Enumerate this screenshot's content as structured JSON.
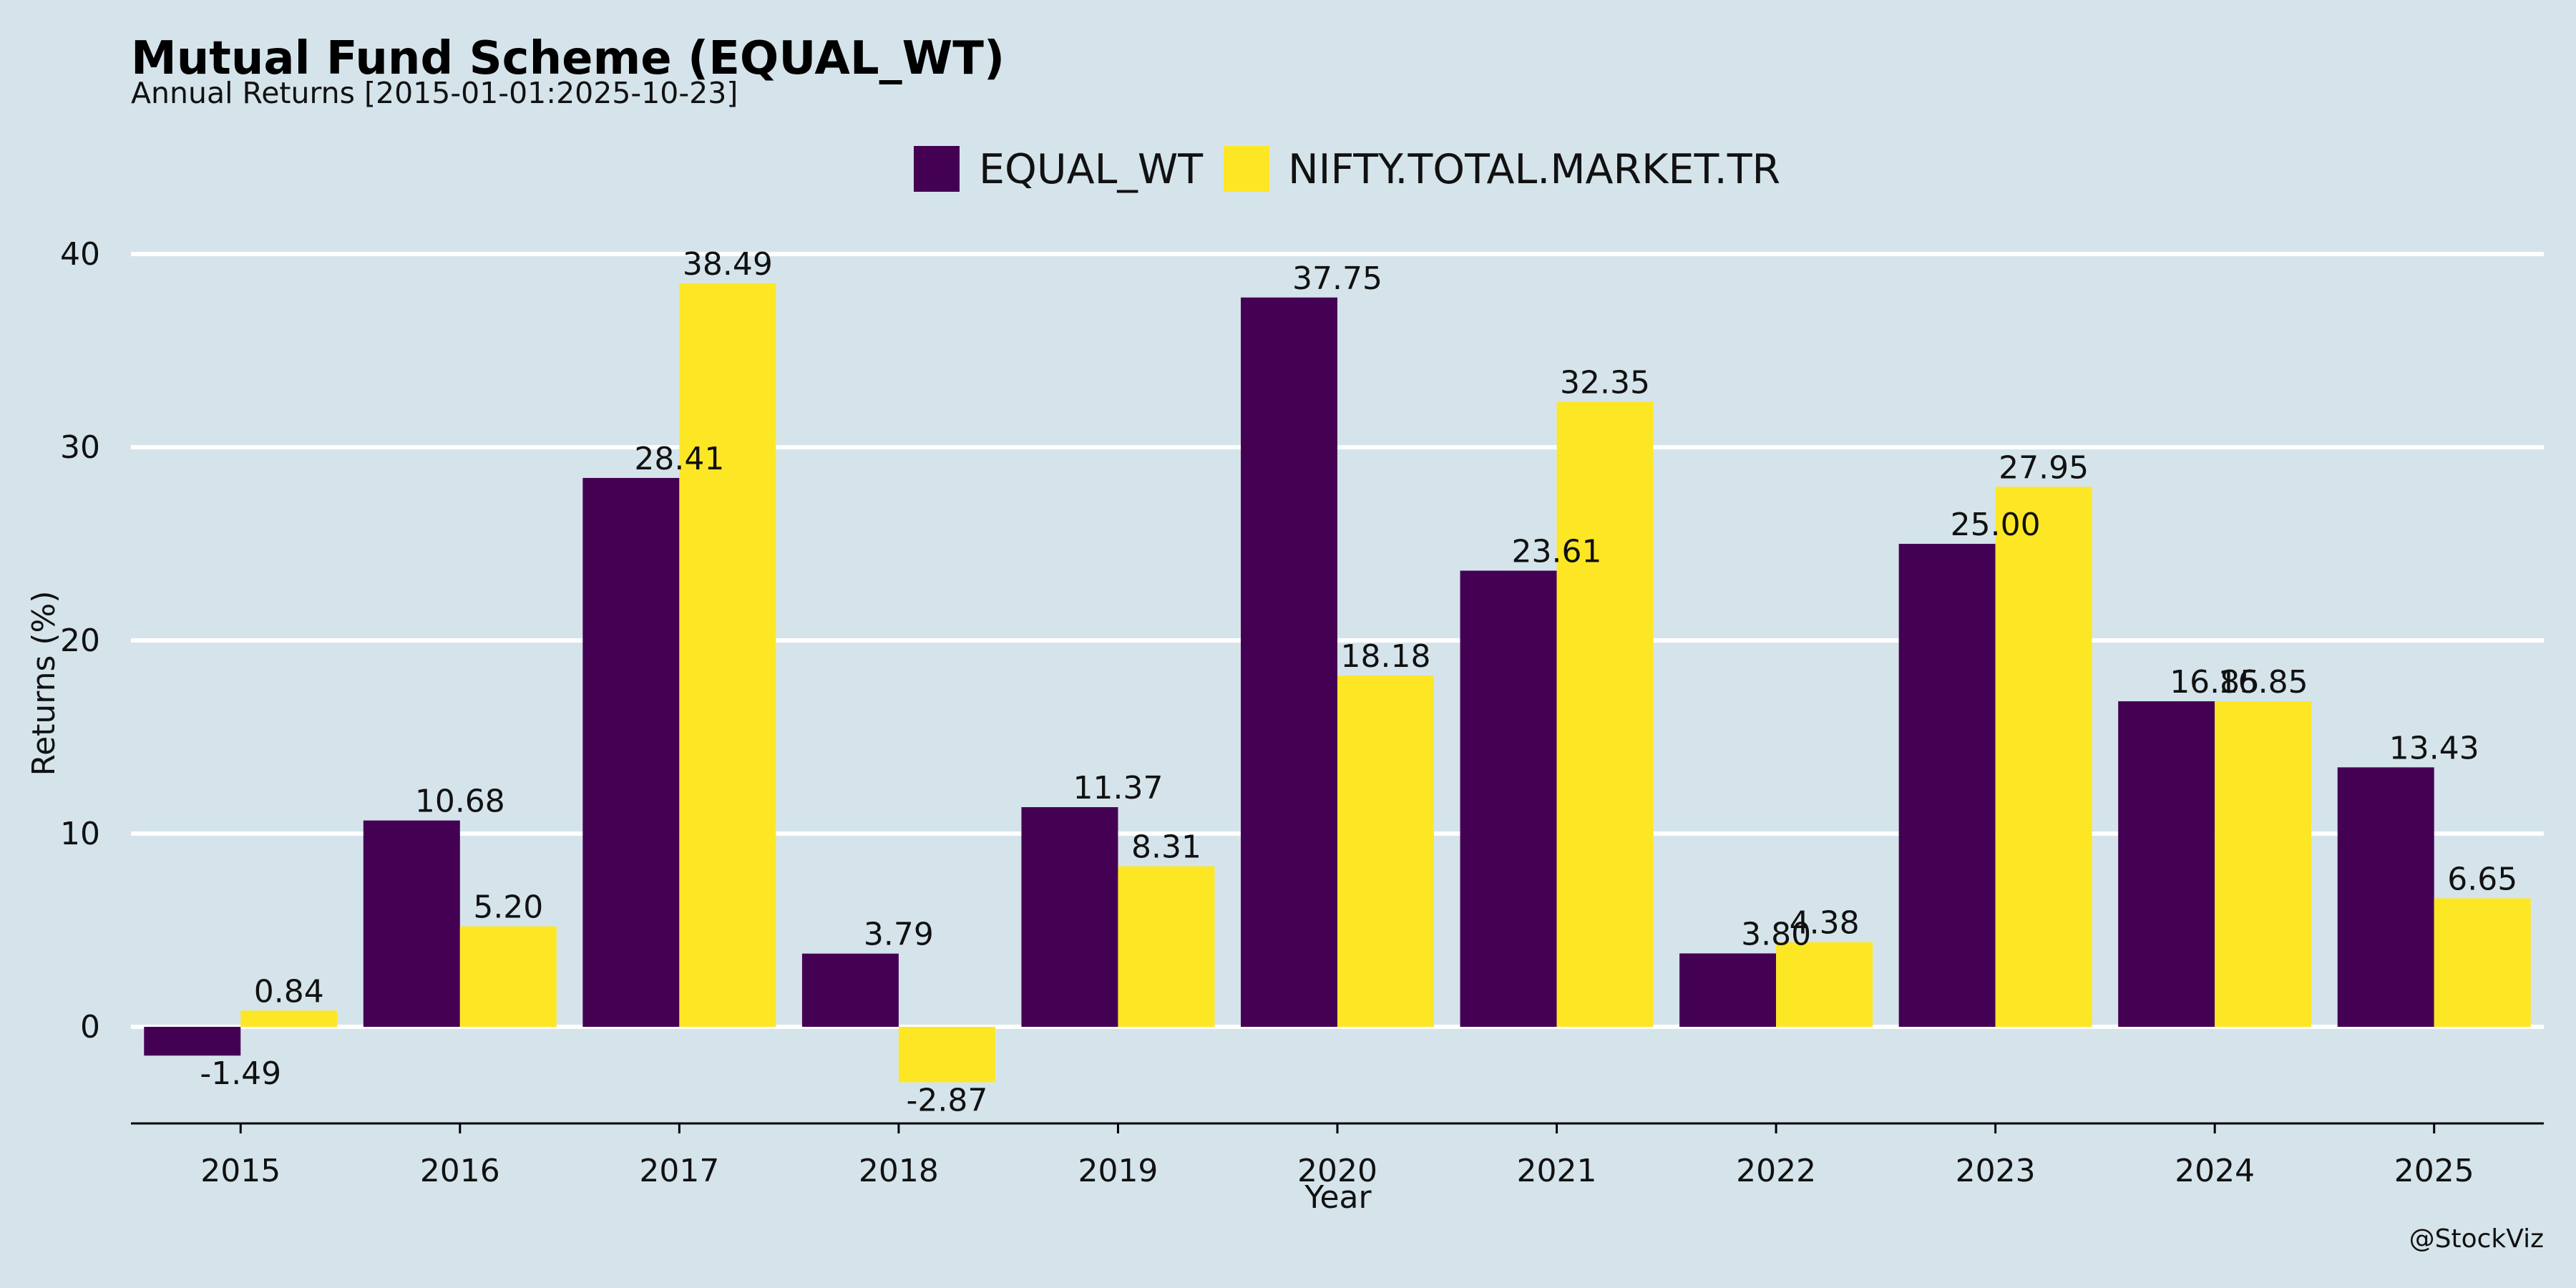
{
  "chart_data": {
    "type": "bar",
    "title": "Mutual Fund Scheme (EQUAL_WT)",
    "subtitle": "Annual Returns [2015-01-01:2025-10-23]",
    "xlabel": "Year",
    "ylabel": "Returns (%)",
    "categories": [
      "2015",
      "2016",
      "2017",
      "2018",
      "2019",
      "2020",
      "2021",
      "2022",
      "2023",
      "2024",
      "2025"
    ],
    "series": [
      {
        "name": "EQUAL_WT",
        "color": "#440154",
        "values": [
          -1.49,
          10.68,
          28.41,
          3.79,
          11.37,
          37.75,
          23.61,
          3.8,
          25.0,
          16.85,
          13.43
        ],
        "labels": [
          "-1.49",
          "10.68",
          "28.41",
          "3.79",
          "11.37",
          "37.75",
          "23.61",
          "3.80",
          "25.00",
          "16.85",
          "13.43"
        ]
      },
      {
        "name": "NIFTY.TOTAL.MARKET.TR",
        "color": "#fde725",
        "values": [
          0.84,
          5.2,
          38.49,
          -2.87,
          8.31,
          18.18,
          32.35,
          4.38,
          27.95,
          16.85,
          6.65
        ],
        "labels": [
          "0.84",
          "5.20",
          "38.49",
          "-2.87",
          "8.31",
          "18.18",
          "32.35",
          "4.38",
          "27.95",
          "16.85",
          "6.65"
        ]
      }
    ],
    "ylim": [
      -5,
      40
    ],
    "yticks": [
      0,
      10,
      20,
      30,
      40
    ],
    "ytick_labels": [
      "0",
      "10",
      "20",
      "30",
      "40"
    ],
    "grid": true,
    "legend_position": "top-center",
    "background_color": "#d5e4eb",
    "grid_color": "#ffffff"
  },
  "watermark": "@StockViz"
}
